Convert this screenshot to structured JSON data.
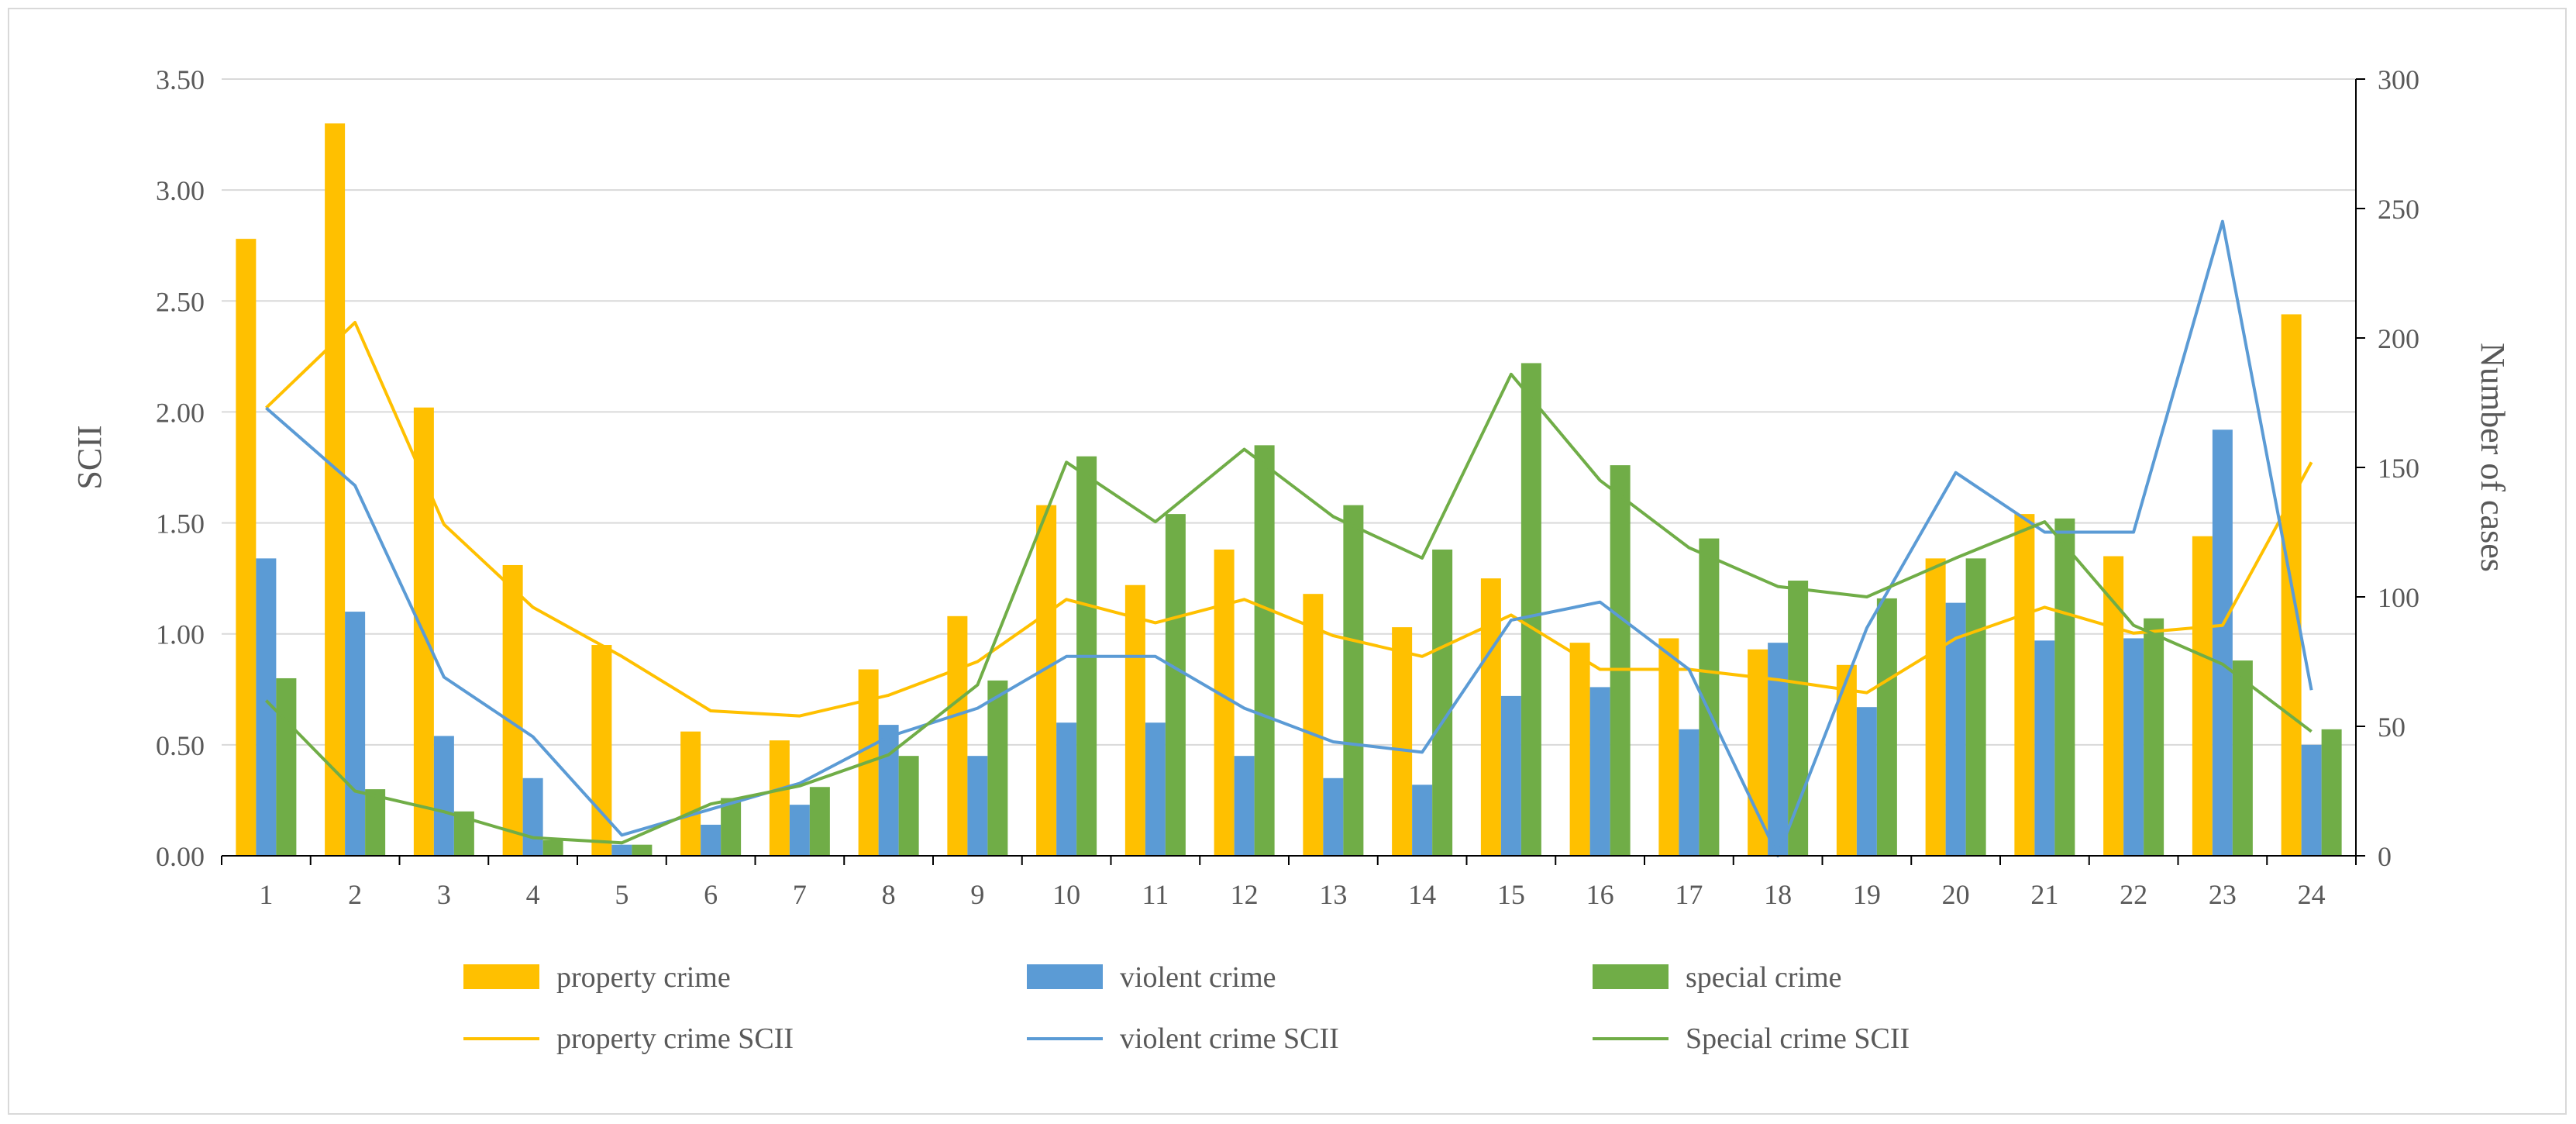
{
  "chart_data": {
    "type": "bar",
    "title": "",
    "xlabel": "",
    "ylabel": "SCII",
    "y2label": "Number of cases",
    "categories": [
      "1",
      "2",
      "3",
      "4",
      "5",
      "6",
      "7",
      "8",
      "9",
      "10",
      "11",
      "12",
      "13",
      "14",
      "15",
      "16",
      "17",
      "18",
      "19",
      "20",
      "21",
      "22",
      "23",
      "24"
    ],
    "ylim": [
      0,
      3.5
    ],
    "y_ticks": [
      "0.00",
      "0.50",
      "1.00",
      "1.50",
      "2.00",
      "2.50",
      "3.00",
      "3.50"
    ],
    "y2lim": [
      0,
      300
    ],
    "y2_ticks": [
      "0",
      "50",
      "100",
      "150",
      "200",
      "250",
      "300"
    ],
    "grid": true,
    "legend_position": "bottom",
    "bar_series": [
      {
        "name": "property crime",
        "color": "#FFC000",
        "values": [
          2.78,
          3.3,
          2.02,
          1.31,
          0.95,
          0.56,
          0.52,
          0.84,
          1.08,
          1.58,
          1.22,
          1.38,
          1.18,
          1.03,
          1.25,
          0.96,
          0.98,
          0.93,
          0.86,
          1.34,
          1.54,
          1.35,
          1.44,
          2.44
        ]
      },
      {
        "name": "violent crime",
        "color": "#5B9BD5",
        "values": [
          1.34,
          1.1,
          0.54,
          0.35,
          0.05,
          0.14,
          0.23,
          0.59,
          0.45,
          0.6,
          0.6,
          0.45,
          0.35,
          0.32,
          0.72,
          0.76,
          0.57,
          0.96,
          0.67,
          1.14,
          0.97,
          0.98,
          1.92,
          0.5
        ]
      },
      {
        "name": "special crime",
        "color": "#70AD47",
        "values": [
          0.8,
          0.3,
          0.2,
          0.07,
          0.05,
          0.26,
          0.31,
          0.45,
          0.79,
          1.8,
          1.54,
          1.85,
          1.58,
          1.38,
          2.22,
          1.76,
          1.43,
          1.24,
          1.16,
          1.34,
          1.52,
          1.07,
          0.88,
          0.57
        ]
      }
    ],
    "line_series": [
      {
        "name": "property crime SCII",
        "color": "#FFC000",
        "values": [
          173,
          206,
          128,
          96,
          77,
          56,
          54,
          62,
          75,
          99,
          90,
          99,
          85,
          77,
          93,
          72,
          72,
          68,
          63,
          84,
          96,
          86,
          89,
          152
        ]
      },
      {
        "name": "violent crime SCII",
        "color": "#5B9BD5",
        "values": [
          173,
          143,
          69,
          46,
          8,
          18,
          28,
          46,
          57,
          77,
          77,
          57,
          44,
          40,
          91,
          98,
          72,
          0,
          88,
          148,
          125,
          125,
          245,
          64
        ]
      },
      {
        "name": "Special crime SCII",
        "color": "#70AD47",
        "values": [
          60,
          25,
          17,
          7,
          5,
          20,
          27,
          39,
          66,
          152,
          129,
          157,
          131,
          115,
          186,
          145,
          119,
          104,
          100,
          115,
          129,
          89,
          74,
          48
        ]
      }
    ]
  }
}
